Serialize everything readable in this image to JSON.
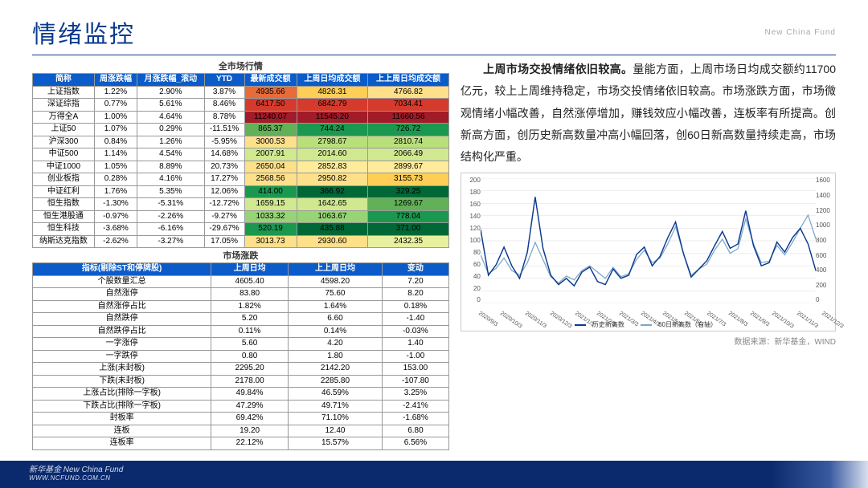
{
  "title": "情绪监控",
  "brand_right": "New China Fund",
  "section1_title": "全市场行情",
  "section2_title": "市场涨跌",
  "table1": {
    "headers": [
      "简称",
      "周涨跌幅",
      "月涨跌幅_滚动",
      "YTD",
      "最新成交额",
      "上周日均成交额",
      "上上周日均成交额"
    ],
    "rows": [
      {
        "c": [
          "上证指数",
          "1.22%",
          "2.90%",
          "3.87%",
          "4935.66",
          "4826.31",
          "4766.82"
        ],
        "bg": [
          "",
          "",
          "",
          "",
          "#e86c3a",
          "#fece57",
          "#fee08b"
        ]
      },
      {
        "c": [
          "深证综指",
          "0.77%",
          "5.61%",
          "8.46%",
          "6417.50",
          "6842.79",
          "7034.41"
        ],
        "bg": [
          "",
          "",
          "",
          "",
          "#d63a2c",
          "#d63a2c",
          "#d63a2c"
        ]
      },
      {
        "c": [
          "万得全A",
          "1.00%",
          "4.64%",
          "8.78%",
          "11240.07",
          "11545.20",
          "11660.56"
        ],
        "bg": [
          "",
          "",
          "",
          "",
          "#a11b28",
          "#a11b28",
          "#a11b28"
        ]
      },
      {
        "c": [
          "上证50",
          "1.07%",
          "0.29%",
          "-11.51%",
          "865.37",
          "744.24",
          "726.72"
        ],
        "bg": [
          "",
          "",
          "",
          "",
          "#62b058",
          "#1a9850",
          "#1a9850"
        ]
      },
      {
        "c": [
          "沪深300",
          "0.84%",
          "1.26%",
          "-5.95%",
          "3000.53",
          "2798.67",
          "2810.74"
        ],
        "bg": [
          "",
          "",
          "",
          "",
          "#fee08b",
          "#b8e07a",
          "#b8e07a"
        ]
      },
      {
        "c": [
          "中证500",
          "1.14%",
          "4.54%",
          "14.68%",
          "2007.91",
          "2014.60",
          "2066.49"
        ],
        "bg": [
          "",
          "",
          "",
          "",
          "#d0e890",
          "#d0e890",
          "#d0e890"
        ]
      },
      {
        "c": [
          "中证1000",
          "1.05%",
          "8.89%",
          "20.73%",
          "2650.04",
          "2852.83",
          "2899.67"
        ],
        "bg": [
          "",
          "",
          "",
          "",
          "#fee08b",
          "#ffeb99",
          "#ffeb99"
        ]
      },
      {
        "c": [
          "创业板指",
          "0.28%",
          "4.16%",
          "17.27%",
          "2568.56",
          "2950.82",
          "3155.73"
        ],
        "bg": [
          "",
          "",
          "",
          "",
          "#fee08b",
          "#fee08b",
          "#fece57"
        ]
      },
      {
        "c": [
          "中证红利",
          "1.76%",
          "5.35%",
          "12.06%",
          "414.00",
          "366.92",
          "329.25"
        ],
        "bg": [
          "",
          "",
          "",
          "",
          "#1a9850",
          "#006837",
          "#006837"
        ]
      },
      {
        "c": [
          "恒生指数",
          "-1.30%",
          "-5.31%",
          "-12.72%",
          "1659.15",
          "1642.65",
          "1269.67"
        ],
        "bg": [
          "",
          "",
          "",
          "",
          "#d0e890",
          "#d0e890",
          "#62b058"
        ]
      },
      {
        "c": [
          "恒生港股通",
          "-0.97%",
          "-2.26%",
          "-9.27%",
          "1033.32",
          "1063.67",
          "778.04"
        ],
        "bg": [
          "",
          "",
          "",
          "",
          "#96d475",
          "#96d475",
          "#1a9850"
        ]
      },
      {
        "c": [
          "恒生科技",
          "-3.68%",
          "-6.16%",
          "-29.67%",
          "520.19",
          "435.88",
          "371.00"
        ],
        "bg": [
          "",
          "",
          "",
          "",
          "#1a9850",
          "#006837",
          "#006837"
        ]
      },
      {
        "c": [
          "纳斯达克指数",
          "-2.62%",
          "-3.27%",
          "17.05%",
          "3013.73",
          "2930.60",
          "2432.35"
        ],
        "bg": [
          "",
          "",
          "",
          "",
          "#fee08b",
          "#fee08b",
          "#e8f0a0"
        ]
      }
    ]
  },
  "table2": {
    "headers": [
      "指标(剔除ST和停牌股)",
      "上周日均",
      "上上周日均",
      "变动"
    ],
    "rows": [
      [
        "个股数量汇总",
        "4605.40",
        "4598.20",
        "7.20"
      ],
      [
        "自然涨停",
        "83.80",
        "75.60",
        "8.20"
      ],
      [
        "自然涨停占比",
        "1.82%",
        "1.64%",
        "0.18%"
      ],
      [
        "自然跌停",
        "5.20",
        "6.60",
        "-1.40"
      ],
      [
        "自然跌停占比",
        "0.11%",
        "0.14%",
        "-0.03%"
      ],
      [
        "一字涨停",
        "5.60",
        "4.20",
        "1.40"
      ],
      [
        "一字跌停",
        "0.80",
        "1.80",
        "-1.00"
      ],
      [
        "上涨(未封板)",
        "2295.20",
        "2142.20",
        "153.00"
      ],
      [
        "下跌(未封板)",
        "2178.00",
        "2285.80",
        "-107.80"
      ],
      [
        "上涨占比(排除一字板)",
        "49.84%",
        "46.59%",
        "3.25%"
      ],
      [
        "下跌占比(排除一字板)",
        "47.29%",
        "49.71%",
        "-2.41%"
      ],
      [
        "封板率",
        "69.42%",
        "71.10%",
        "-1.68%"
      ],
      [
        "连板",
        "19.20",
        "12.40",
        "6.80"
      ],
      [
        "连板率",
        "22.12%",
        "15.57%",
        "6.56%"
      ]
    ]
  },
  "paragraph": {
    "bold": "上周市场交投情绪依旧较高。",
    "rest": "量能方面，上周市场日均成交额约11700亿元，较上上周维持稳定，市场交投情绪依旧较高。市场涨跌方面，市场微观情绪小幅改善，自然涨停增加，赚钱效应小幅改善，连板率有所提高。创新高方面，创历史新高数量冲高小幅回落，创60日新高数量持续走高，市场结构化严重。"
  },
  "chart": {
    "y_left": [
      "200",
      "180",
      "160",
      "140",
      "120",
      "100",
      "80",
      "60",
      "40",
      "20",
      "0"
    ],
    "y_right": [
      "1600",
      "1400",
      "1200",
      "1000",
      "800",
      "600",
      "400",
      "200",
      "0"
    ],
    "x_labels": [
      "2020/9/3",
      "2020/10/3",
      "2020/11/3",
      "2020/12/3",
      "2021/1/3",
      "2021/2/3",
      "2021/3/3",
      "2021/4/3",
      "2021/5/3",
      "2021/6/3",
      "2021/7/3",
      "2021/8/3",
      "2021/9/3",
      "2021/10/3",
      "2021/11/3",
      "2021/12/3"
    ],
    "series1_name": "历史新高数",
    "series2_name": "60日新高数（右轴）",
    "s1_color": "#0b3a8f",
    "s2_color": "#7aa5c9",
    "s1": [
      118,
      45,
      62,
      90,
      60,
      40,
      82,
      170,
      88,
      45,
      30,
      40,
      28,
      50,
      58,
      35,
      30,
      55,
      40,
      45,
      78,
      90,
      60,
      75,
      105,
      130,
      80,
      42,
      55,
      68,
      92,
      115,
      88,
      95,
      148,
      92,
      60,
      65,
      98,
      82,
      105,
      120,
      95,
      52
    ],
    "s2": [
      620,
      380,
      450,
      580,
      420,
      360,
      520,
      780,
      560,
      340,
      260,
      350,
      300,
      420,
      480,
      400,
      320,
      460,
      340,
      380,
      560,
      680,
      520,
      580,
      760,
      980,
      640,
      360,
      440,
      500,
      680,
      820,
      640,
      700,
      1080,
      760,
      520,
      540,
      740,
      620,
      780,
      960,
      1130,
      820
    ]
  },
  "source": "数据来源：新华基金，WIND",
  "footer": {
    "line1": "新华基金 New China Fund",
    "line2": "WWW.NCFUND.COM.CN"
  }
}
